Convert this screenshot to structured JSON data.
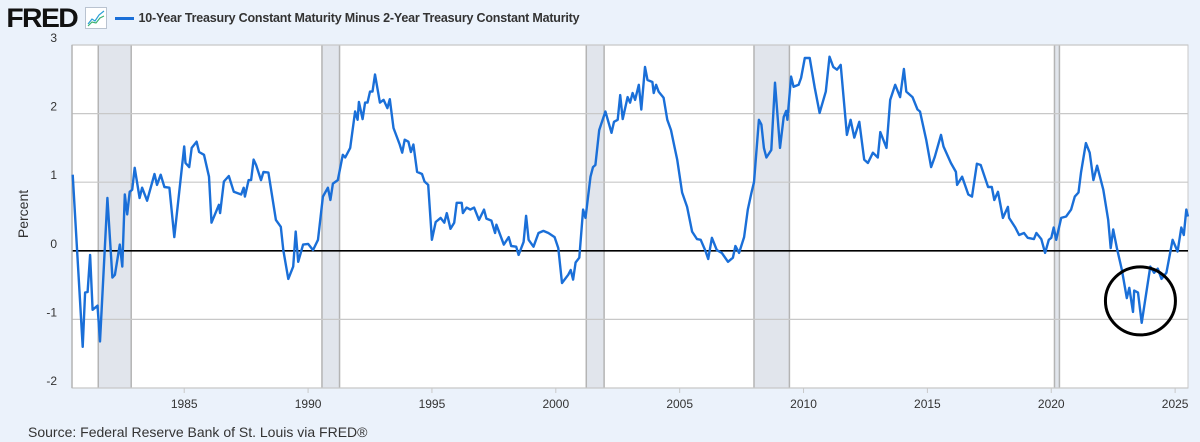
{
  "header": {
    "logo_text": "FRED",
    "logo_icon": "line-chart-icon",
    "legend_label": "10-Year Treasury Constant Maturity Minus 2-Year Treasury Constant Maturity"
  },
  "source": "Source: Federal Reserve Bank of St. Louis via FRED®",
  "colors": {
    "series": "#1a6fd8",
    "background": "#ebf2fb",
    "plot": "#ffffff",
    "recession": "#e1e5ec",
    "grid": "#c8c8c8",
    "zero_line": "#000000",
    "annotation": "#000000"
  },
  "chart_data": {
    "type": "line",
    "ylabel": "Percent",
    "xlim": [
      1980.47,
      2025.52
    ],
    "ylim": [
      -2,
      3
    ],
    "grid": true,
    "legend_placement": "top-left",
    "x_ticks": [
      "1985",
      "1990",
      "1995",
      "2000",
      "2005",
      "2010",
      "2015",
      "2020",
      "2025"
    ],
    "y_ticks": [
      "-2",
      "-1",
      "0",
      "1",
      "2",
      "3"
    ],
    "recessions": [
      [
        1981.53,
        1982.86
      ],
      [
        1990.56,
        1991.27
      ],
      [
        2001.23,
        2001.95
      ],
      [
        2008.0,
        2009.43
      ],
      [
        2020.13,
        2020.33
      ]
    ],
    "annotation": {
      "type": "circle",
      "center": [
        2023.6,
        -0.73
      ],
      "note": "2022-2024 inversion circled"
    },
    "series": [
      {
        "name": "10-Year Treasury Constant Maturity Minus 2-Year Treasury Constant Maturity",
        "x": [
          1980.5,
          1980.9,
          1981.0,
          1981.1,
          1981.2,
          1981.3,
          1981.5,
          1981.6,
          1981.9,
          1982.1,
          1982.2,
          1982.4,
          1982.5,
          1982.6,
          1982.7,
          1982.8,
          1982.9,
          1983.0,
          1983.2,
          1983.3,
          1983.5,
          1983.8,
          1983.9,
          1984.05,
          1984.2,
          1984.4,
          1984.6,
          1985.0,
          1985.05,
          1985.2,
          1985.3,
          1985.5,
          1985.6,
          1985.8,
          1986.0,
          1986.1,
          1986.4,
          1986.45,
          1986.6,
          1986.8,
          1987.0,
          1987.3,
          1987.4,
          1987.45,
          1987.6,
          1987.7,
          1987.8,
          1987.9,
          1988.1,
          1988.2,
          1988.4,
          1988.7,
          1988.9,
          1989.0,
          1989.2,
          1989.4,
          1989.5,
          1989.6,
          1989.8,
          1990.0,
          1990.2,
          1990.4,
          1990.6,
          1990.8,
          1990.9,
          1991.0,
          1991.2,
          1991.4,
          1991.5,
          1991.7,
          1991.9,
          1992.0,
          1992.05,
          1992.2,
          1992.3,
          1992.4,
          1992.5,
          1992.6,
          1992.7,
          1992.9,
          1993.05,
          1993.2,
          1993.3,
          1993.45,
          1993.7,
          1993.8,
          1993.9,
          1994.05,
          1994.15,
          1994.25,
          1994.4,
          1994.6,
          1994.7,
          1994.85,
          1995.0,
          1995.15,
          1995.35,
          1995.5,
          1995.6,
          1995.75,
          1995.9,
          1996.0,
          1996.2,
          1996.25,
          1996.4,
          1996.55,
          1996.7,
          1996.9,
          1997.1,
          1997.2,
          1997.4,
          1997.55,
          1997.6,
          1997.9,
          1998.1,
          1998.2,
          1998.4,
          1998.5,
          1998.7,
          1998.8,
          1998.9,
          1999.1,
          1999.3,
          1999.5,
          1999.7,
          1999.95,
          2000.1,
          2000.25,
          2000.5,
          2000.6,
          2000.7,
          2000.8,
          2000.95,
          2001.1,
          2001.2,
          2001.4,
          2001.5,
          2001.6,
          2001.75,
          2002.0,
          2002.25,
          2002.35,
          2002.5,
          2002.6,
          2002.7,
          2002.9,
          2003.0,
          2003.1,
          2003.2,
          2003.35,
          2003.45,
          2003.6,
          2003.7,
          2003.9,
          2003.95,
          2004.05,
          2004.15,
          2004.35,
          2004.5,
          2004.65,
          2004.8,
          2004.9,
          2005.1,
          2005.3,
          2005.5,
          2005.7,
          2005.85,
          2006.05,
          2006.15,
          2006.3,
          2006.5,
          2006.7,
          2006.95,
          2007.15,
          2007.25,
          2007.4,
          2007.6,
          2007.75,
          2007.9,
          2008.0,
          2008.2,
          2008.3,
          2008.4,
          2008.5,
          2008.7,
          2008.85,
          2009.05,
          2009.2,
          2009.3,
          2009.35,
          2009.5,
          2009.6,
          2009.8,
          2009.9,
          2010.05,
          2010.25,
          2010.45,
          2010.65,
          2010.9,
          2011.05,
          2011.2,
          2011.35,
          2011.5,
          2011.75,
          2011.9,
          2012.05,
          2012.25,
          2012.45,
          2012.6,
          2012.8,
          2013.0,
          2013.1,
          2013.35,
          2013.5,
          2013.7,
          2013.9,
          2014.05,
          2014.15,
          2014.4,
          2014.6,
          2014.7,
          2014.8,
          2014.95,
          2015.15,
          2015.3,
          2015.55,
          2015.65,
          2015.95,
          2016.15,
          2016.2,
          2016.4,
          2016.65,
          2016.8,
          2017.0,
          2017.15,
          2017.45,
          2017.6,
          2017.7,
          2017.85,
          2018.05,
          2018.25,
          2018.3,
          2018.55,
          2018.7,
          2018.9,
          2019.05,
          2019.3,
          2019.4,
          2019.6,
          2019.75,
          2019.9,
          2020.0,
          2020.1,
          2020.2,
          2020.4,
          2020.6,
          2020.8,
          2020.95,
          2021.1,
          2021.2,
          2021.4,
          2021.55,
          2021.7,
          2021.85,
          2022.1,
          2022.3,
          2022.4,
          2022.5,
          2022.65,
          2022.85,
          2023.05,
          2023.15,
          2023.3,
          2023.35,
          2023.5,
          2023.65,
          2024.0,
          2024.15,
          2024.3,
          2024.45,
          2024.65,
          2024.9,
          2025.1,
          2025.25,
          2025.35,
          2025.45,
          2025.52
        ],
        "y": [
          1.11,
          -1.4,
          -0.61,
          -0.6,
          -0.06,
          -0.86,
          -0.8,
          -1.32,
          0.77,
          -0.39,
          -0.35,
          0.09,
          -0.23,
          0.82,
          0.53,
          0.86,
          0.89,
          1.21,
          0.77,
          0.92,
          0.73,
          1.12,
          0.96,
          1.11,
          0.93,
          0.92,
          0.2,
          1.52,
          1.28,
          1.22,
          1.5,
          1.59,
          1.44,
          1.4,
          1.08,
          0.41,
          0.67,
          0.55,
          1.01,
          1.09,
          0.86,
          0.82,
          0.92,
          0.79,
          1.03,
          1.03,
          1.33,
          1.25,
          1.03,
          1.15,
          1.14,
          0.45,
          0.35,
          0.01,
          -0.41,
          -0.23,
          0.28,
          -0.16,
          0.09,
          0.1,
          0.01,
          0.16,
          0.79,
          0.92,
          0.74,
          0.98,
          1.03,
          1.4,
          1.36,
          1.5,
          2.03,
          1.91,
          2.17,
          1.92,
          2.16,
          2.16,
          2.32,
          2.32,
          2.57,
          2.16,
          2.2,
          2.08,
          2.21,
          1.79,
          1.55,
          1.43,
          1.62,
          1.59,
          1.44,
          1.55,
          1.15,
          1.12,
          1.01,
          0.96,
          0.16,
          0.42,
          0.48,
          0.41,
          0.55,
          0.32,
          0.41,
          0.7,
          0.7,
          0.55,
          0.63,
          0.6,
          0.63,
          0.45,
          0.6,
          0.47,
          0.44,
          0.26,
          0.38,
          0.09,
          0.2,
          0.07,
          0.06,
          -0.06,
          0.13,
          0.51,
          0.16,
          0.06,
          0.26,
          0.29,
          0.26,
          0.2,
          0.04,
          -0.47,
          -0.35,
          -0.28,
          -0.42,
          -0.17,
          -0.1,
          0.6,
          0.48,
          1.08,
          1.22,
          1.25,
          1.76,
          2.03,
          1.72,
          1.88,
          1.91,
          2.27,
          1.92,
          2.24,
          2.16,
          2.3,
          2.2,
          2.42,
          2.06,
          2.68,
          2.49,
          2.46,
          2.3,
          2.42,
          2.32,
          2.23,
          1.91,
          1.76,
          1.5,
          1.33,
          0.85,
          0.64,
          0.28,
          0.17,
          0.16,
          -0.01,
          -0.12,
          0.19,
          0.01,
          -0.03,
          -0.16,
          -0.1,
          0.07,
          -0.03,
          0.2,
          0.6,
          0.85,
          1.0,
          1.91,
          1.84,
          1.5,
          1.36,
          1.47,
          2.45,
          1.5,
          1.95,
          2.04,
          1.91,
          2.54,
          2.39,
          2.42,
          2.52,
          2.81,
          2.81,
          2.38,
          2.01,
          2.32,
          2.83,
          2.68,
          2.64,
          2.71,
          1.69,
          1.91,
          1.65,
          1.88,
          1.33,
          1.28,
          1.43,
          1.36,
          1.73,
          1.5,
          2.2,
          2.42,
          2.24,
          2.65,
          2.32,
          2.24,
          2.06,
          2.03,
          1.87,
          1.62,
          1.22,
          1.37,
          1.69,
          1.52,
          1.28,
          1.15,
          0.96,
          1.08,
          0.82,
          0.79,
          1.27,
          1.25,
          0.93,
          0.93,
          0.74,
          0.86,
          0.48,
          0.64,
          0.48,
          0.34,
          0.23,
          0.26,
          0.19,
          0.17,
          0.26,
          0.17,
          -0.03,
          0.16,
          0.19,
          0.34,
          0.16,
          0.48,
          0.5,
          0.6,
          0.79,
          0.85,
          1.14,
          1.57,
          1.43,
          1.03,
          1.24,
          0.89,
          0.45,
          0.04,
          0.31,
          0.04,
          -0.28,
          -0.69,
          -0.54,
          -0.89,
          -0.58,
          -0.61,
          -1.05,
          -0.23,
          -0.32,
          -0.26,
          -0.41,
          -0.32,
          0.16,
          -0.01,
          0.34,
          0.23,
          0.6,
          0.5
        ]
      }
    ]
  }
}
